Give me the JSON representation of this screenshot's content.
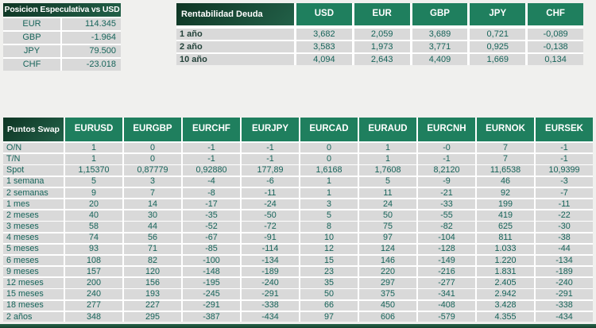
{
  "colors": {
    "page_background": "#f0f0ee",
    "cell_background": "#d9d9d9",
    "value_text": "#17645a",
    "column_header_green": "#1f7f5e",
    "title_header_dark_green": "#0e3524",
    "header_text": "#ffffff"
  },
  "speculative_position": {
    "title": "Posicion Especulativa vs USD",
    "rows": [
      {
        "label": "EUR",
        "value": "114.345"
      },
      {
        "label": "GBP",
        "value": "-1.964"
      },
      {
        "label": "JPY",
        "value": "79.500"
      },
      {
        "label": "CHF",
        "value": "-23.018"
      }
    ]
  },
  "debt_yield": {
    "title": "Rentabilidad Deuda",
    "columns": [
      "USD",
      "EUR",
      "GBP",
      "JPY",
      "CHF"
    ],
    "rows": [
      {
        "label": "1 año",
        "values": [
          "3,682",
          "2,059",
          "3,689",
          "0,721",
          "-0,089"
        ]
      },
      {
        "label": "2 año",
        "values": [
          "3,583",
          "1,973",
          "3,771",
          "0,925",
          "-0,138"
        ]
      },
      {
        "label": "10 año",
        "values": [
          "4,094",
          "2,643",
          "4,409",
          "1,669",
          "0,134"
        ]
      }
    ]
  },
  "swap_points": {
    "title": "Puntos Swap",
    "columns": [
      "EURUSD",
      "EURGBP",
      "EURCHF",
      "EURJPY",
      "EURCAD",
      "EURAUD",
      "EURCNH",
      "EURNOK",
      "EURSEK"
    ],
    "rows": [
      {
        "label": "O/N",
        "values": [
          "1",
          "0",
          "-1",
          "-1",
          "0",
          "1",
          "-0",
          "7",
          "-1"
        ]
      },
      {
        "label": "T/N",
        "values": [
          "1",
          "0",
          "-1",
          "-1",
          "0",
          "1",
          "-1",
          "7",
          "-1"
        ]
      },
      {
        "label": "Spot",
        "values": [
          "1,15370",
          "0,87779",
          "0,92880",
          "177,89",
          "1,6168",
          "1,7608",
          "8,2120",
          "11,6538",
          "10,9399"
        ]
      },
      {
        "label": "1 semana",
        "values": [
          "5",
          "3",
          "-4",
          "-6",
          "1",
          "5",
          "-9",
          "46",
          "-3"
        ]
      },
      {
        "label": "2 semanas",
        "values": [
          "9",
          "7",
          "-8",
          "-11",
          "1",
          "11",
          "-21",
          "92",
          "-7"
        ]
      },
      {
        "label": "1 mes",
        "values": [
          "20",
          "14",
          "-17",
          "-24",
          "3",
          "24",
          "-33",
          "199",
          "-11"
        ]
      },
      {
        "label": "2 meses",
        "values": [
          "40",
          "30",
          "-35",
          "-50",
          "5",
          "50",
          "-55",
          "419",
          "-22"
        ]
      },
      {
        "label": "3 meses",
        "values": [
          "58",
          "44",
          "-52",
          "-72",
          "8",
          "75",
          "-82",
          "625",
          "-30"
        ]
      },
      {
        "label": "4 meses",
        "values": [
          "74",
          "56",
          "-67",
          "-91",
          "10",
          "97",
          "-104",
          "811",
          "-38"
        ]
      },
      {
        "label": "5 meses",
        "values": [
          "93",
          "71",
          "-85",
          "-114",
          "12",
          "124",
          "-128",
          "1.033",
          "-44"
        ]
      },
      {
        "label": "6 meses",
        "values": [
          "108",
          "82",
          "-100",
          "-134",
          "15",
          "146",
          "-149",
          "1.220",
          "-134"
        ]
      },
      {
        "label": "9 meses",
        "values": [
          "157",
          "120",
          "-148",
          "-189",
          "23",
          "220",
          "-216",
          "1.831",
          "-189"
        ]
      },
      {
        "label": "12 meses",
        "values": [
          "200",
          "156",
          "-195",
          "-240",
          "35",
          "297",
          "-277",
          "2.405",
          "-240"
        ]
      },
      {
        "label": "15 meses",
        "values": [
          "240",
          "193",
          "-245",
          "-291",
          "50",
          "375",
          "-341",
          "2.942",
          "-291"
        ]
      },
      {
        "label": "18 meses",
        "values": [
          "277",
          "227",
          "-291",
          "-338",
          "66",
          "450",
          "-408",
          "3.428",
          "-338"
        ]
      },
      {
        "label": "2 años",
        "values": [
          "348",
          "295",
          "-387",
          "-434",
          "97",
          "606",
          "-579",
          "4.355",
          "-434"
        ]
      }
    ]
  }
}
